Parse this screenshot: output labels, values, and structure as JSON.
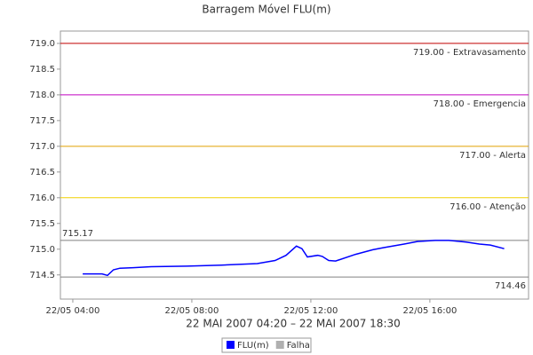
{
  "chart_data": {
    "type": "line",
    "title": "Barragem Móvel FLU(m)",
    "subtitle": "22 MAI 2007 04:20 – 22 MAI 2007 18:30",
    "x": [
      "2007-05-22T04:20",
      "2007-05-22T04:59",
      "2007-05-22T05:10",
      "2007-05-22T05:22",
      "2007-05-22T05:35",
      "2007-05-22T06:02",
      "2007-05-22T06:38",
      "2007-05-22T07:50",
      "2007-05-22T09:00",
      "2007-05-22T10:12",
      "2007-05-22T10:48",
      "2007-05-22T11:10",
      "2007-05-22T11:31",
      "2007-05-22T11:42",
      "2007-05-22T11:53",
      "2007-05-22T12:14",
      "2007-05-22T12:23",
      "2007-05-22T12:36",
      "2007-05-22T12:50",
      "2007-05-22T13:30",
      "2007-05-22T14:05",
      "2007-05-22T14:27",
      "2007-05-22T15:08",
      "2007-05-22T15:35",
      "2007-05-22T16:11",
      "2007-05-22T16:38",
      "2007-05-22T17:13",
      "2007-05-22T17:40",
      "2007-05-22T18:02",
      "2007-05-22T18:30"
    ],
    "series": [
      {
        "name": "FLU(m)",
        "color": "#0000ff",
        "values": [
          714.52,
          714.52,
          714.49,
          714.6,
          714.63,
          714.64,
          714.66,
          714.67,
          714.69,
          714.72,
          714.78,
          714.88,
          715.06,
          715.01,
          714.85,
          714.88,
          714.86,
          714.78,
          714.77,
          714.9,
          714.99,
          715.03,
          715.1,
          715.15,
          715.17,
          715.17,
          715.14,
          715.1,
          715.08,
          715.01
        ]
      },
      {
        "name": "Falha",
        "color": "#b0b0b0",
        "values": [
          null,
          null,
          null,
          null,
          null,
          null,
          null,
          null,
          null,
          null,
          null,
          null,
          null,
          null,
          null,
          null,
          null,
          null,
          null,
          null,
          null,
          null,
          null,
          null,
          null,
          null,
          null,
          null,
          null,
          null
        ]
      }
    ],
    "xlim": [
      "2007-05-22T03:35",
      "2007-05-22T19:19"
    ],
    "xticks": [
      {
        "value": "2007-05-22T04:00",
        "label": "22/05 04:00"
      },
      {
        "value": "2007-05-22T08:00",
        "label": "22/05 08:00"
      },
      {
        "value": "2007-05-22T12:00",
        "label": "22/05 12:00"
      },
      {
        "value": "2007-05-22T16:00",
        "label": "22/05 16:00"
      }
    ],
    "ylim": [
      714.03,
      719.24
    ],
    "yticks": [
      714.5,
      {
        "value": 715,
        "label": "715.0"
      },
      715.5,
      {
        "value": 716,
        "label": "716.0"
      },
      716.5,
      {
        "value": 717,
        "label": "717.0"
      },
      717.5,
      {
        "value": 718,
        "label": "718.0"
      },
      718.5,
      {
        "value": 719,
        "label": "719.0"
      }
    ],
    "annotations": [
      {
        "value": 719,
        "label": "719.00 - Extravasamento",
        "color": "#c00000"
      },
      {
        "value": 718,
        "label": "718.00 - Emergencia",
        "color": "#c000c0"
      },
      {
        "value": 717,
        "label": "717.00 - Alerta",
        "color": "#e0a000"
      },
      {
        "value": 716,
        "label": "716.00 - Atenção",
        "color": "#f0d000"
      },
      {
        "value": 715.17,
        "label": "715.17",
        "color": "#808080"
      },
      {
        "value": 714.46,
        "label": "714.46",
        "color": "#808080"
      }
    ]
  }
}
